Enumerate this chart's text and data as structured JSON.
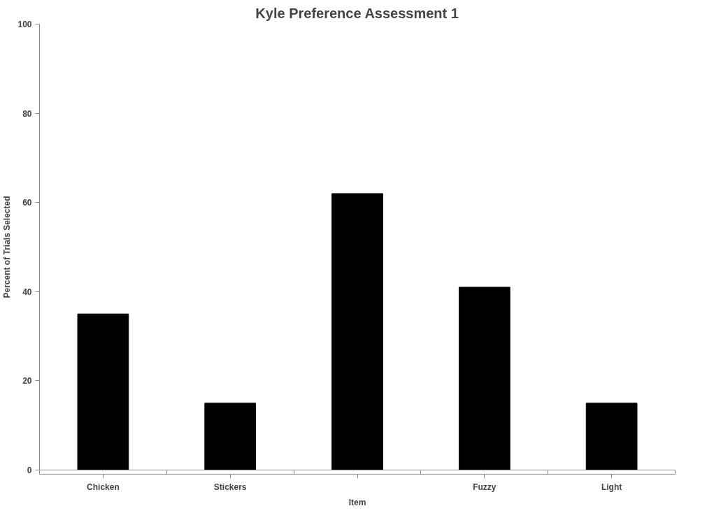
{
  "chart_data": {
    "type": "bar",
    "title": "Kyle Preference Assessment 1",
    "xlabel": "Item",
    "ylabel": "Percent of Trials Selected",
    "categories": [
      "Chicken",
      "Stickers",
      null,
      "Fuzzy",
      "Light"
    ],
    "values": [
      35,
      15,
      62,
      41,
      15
    ],
    "color": "#000000",
    "ylim": [
      0,
      100
    ],
    "yticks": [
      0,
      20,
      40,
      60,
      80,
      100
    ],
    "grid": false
  }
}
